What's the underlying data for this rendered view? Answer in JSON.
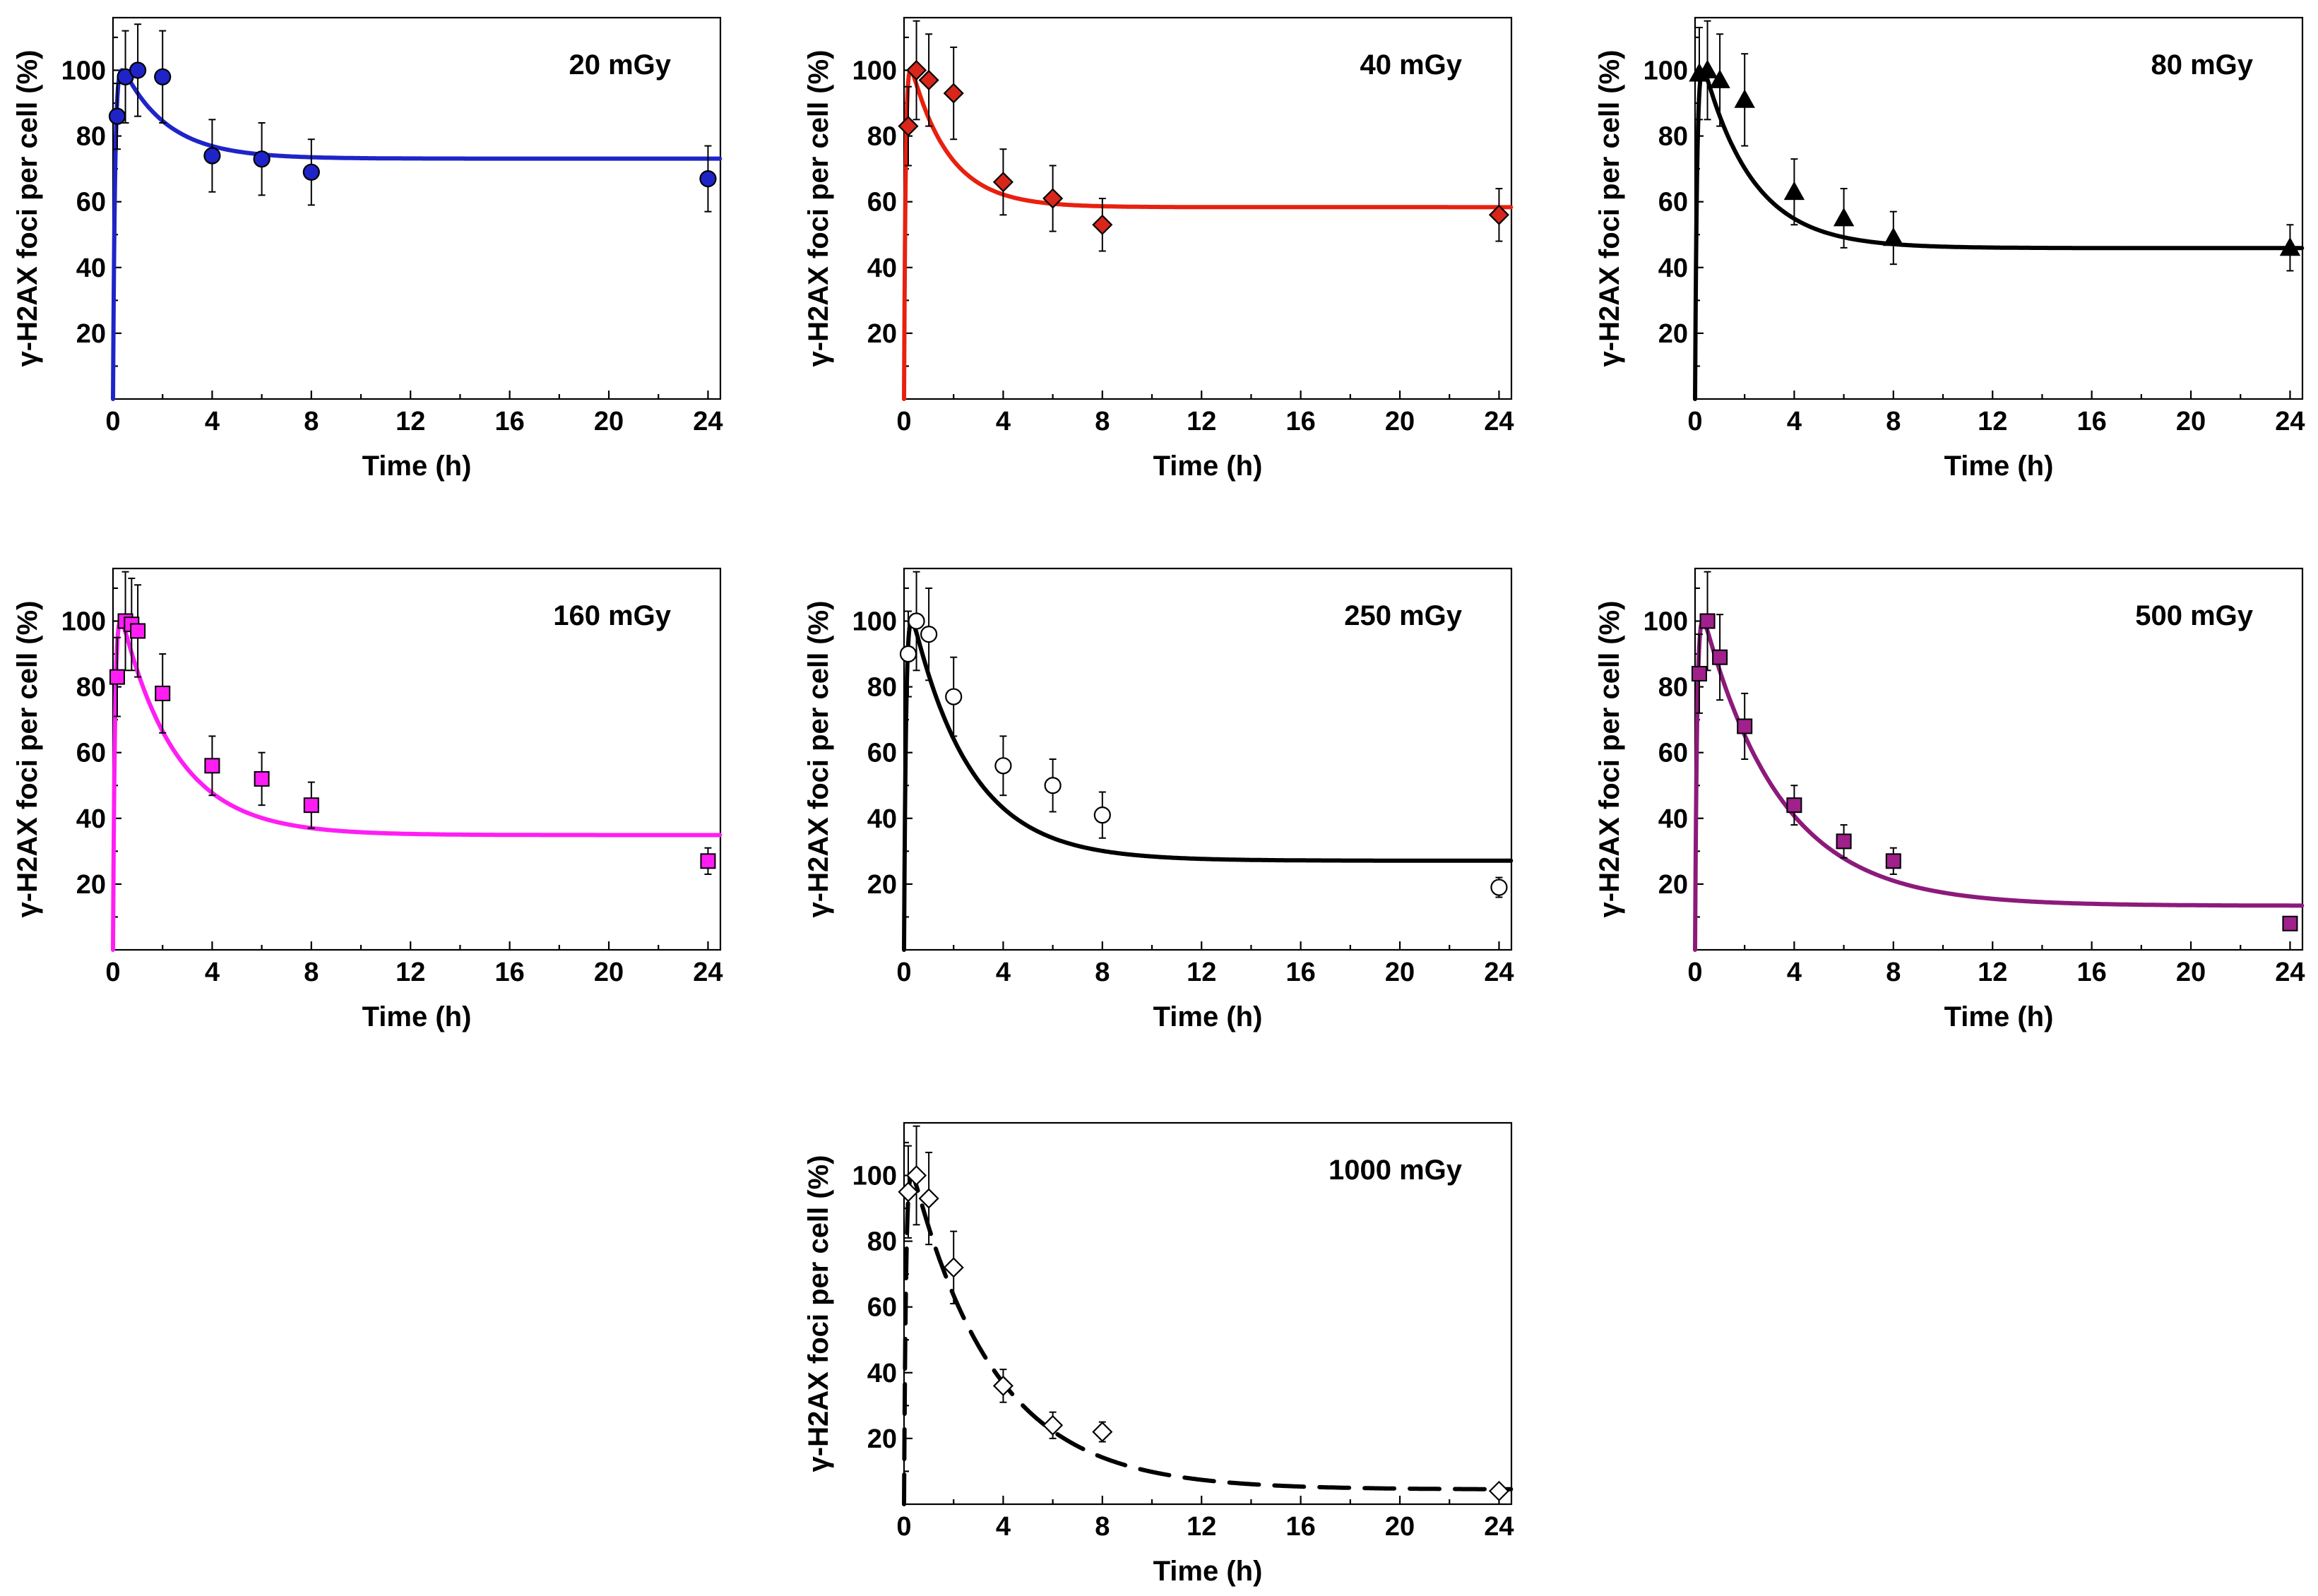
{
  "chart_data": [
    {
      "type": "scatter",
      "title": "20 mGy",
      "xlabel": "Time (h)",
      "ylabel": "γ-H2AX foci per cell (%)",
      "xlim": [
        0,
        24.5
      ],
      "ylim": [
        0,
        116
      ],
      "xticks": [
        "0",
        "4",
        "8",
        "12",
        "16",
        "20",
        "24"
      ],
      "yticks": [
        "20",
        "40",
        "60",
        "80",
        "100"
      ],
      "marker": "circle",
      "color": "#1f24c8",
      "fill": "#1f24c8",
      "line_style": "solid",
      "fit_plateau": 68,
      "fit_rise": 4,
      "fit_decay": 0.55,
      "x": [
        0.17,
        0.5,
        1,
        2,
        4,
        6,
        8,
        24
      ],
      "y": [
        86,
        98,
        100,
        98,
        74,
        73,
        69,
        67
      ],
      "err": [
        10,
        14,
        14,
        14,
        11,
        11,
        10,
        10
      ]
    },
    {
      "type": "scatter",
      "title": "40 mGy",
      "xlabel": "Time (h)",
      "ylabel": "γ-H2AX foci per cell (%)",
      "xlim": [
        0,
        24.5
      ],
      "ylim": [
        0,
        116
      ],
      "xticks": [
        "0",
        "4",
        "8",
        "12",
        "16",
        "20",
        "24"
      ],
      "yticks": [
        "20",
        "40",
        "60",
        "80",
        "100"
      ],
      "marker": "diamond",
      "color": "#e82010",
      "fill": "#d8261a",
      "line_style": "solid",
      "fit_plateau": 53,
      "fit_rise": 5,
      "fit_decay": 0.65,
      "x": [
        0.17,
        0.5,
        1,
        2,
        4,
        6,
        8,
        24
      ],
      "y": [
        83,
        100,
        97,
        93,
        66,
        61,
        53,
        56
      ],
      "err": [
        12,
        15,
        14,
        14,
        10,
        10,
        8,
        8
      ]
    },
    {
      "type": "scatter",
      "title": "80 mGy",
      "xlabel": "Time (h)",
      "ylabel": "γ-H2AX foci per cell (%)",
      "xlim": [
        0,
        24.5
      ],
      "ylim": [
        0,
        116
      ],
      "xticks": [
        "0",
        "4",
        "8",
        "12",
        "16",
        "20",
        "24"
      ],
      "yticks": [
        "20",
        "40",
        "60",
        "80",
        "100"
      ],
      "marker": "triangle",
      "color": "#000000",
      "fill": "#000000",
      "line_style": "solid",
      "fit_plateau": 41,
      "fit_rise": 4,
      "fit_decay": 0.5,
      "x": [
        0.17,
        0.5,
        1,
        2,
        4,
        6,
        8,
        24
      ],
      "y": [
        99,
        100,
        97,
        91,
        63,
        55,
        49,
        46
      ],
      "err": [
        14,
        15,
        14,
        14,
        10,
        9,
        8,
        7
      ]
    },
    {
      "type": "scatter",
      "title": "160 mGy",
      "xlabel": "Time (h)",
      "ylabel": "γ-H2AX foci per cell (%)",
      "xlim": [
        0,
        24.5
      ],
      "ylim": [
        0,
        116
      ],
      "xticks": [
        "0",
        "4",
        "8",
        "12",
        "16",
        "20",
        "24"
      ],
      "yticks": [
        "20",
        "40",
        "60",
        "80",
        "100"
      ],
      "marker": "square",
      "color": "#ff1df4",
      "fill": "#ff1df4",
      "line_style": "solid",
      "fit_plateau": 31,
      "fit_rise": 4,
      "fit_decay": 0.45,
      "x": [
        0.17,
        0.5,
        0.75,
        1,
        2,
        4,
        6,
        8,
        24
      ],
      "y": [
        83,
        100,
        99,
        97,
        78,
        56,
        52,
        44,
        27
      ],
      "err": [
        12,
        15,
        14,
        14,
        12,
        9,
        8,
        7,
        4
      ]
    },
    {
      "type": "scatter",
      "title": "250 mGy",
      "xlabel": "Time (h)",
      "ylabel": "γ-H2AX foci per cell (%)",
      "xlim": [
        0,
        24.5
      ],
      "ylim": [
        0,
        116
      ],
      "xticks": [
        "0",
        "4",
        "8",
        "12",
        "16",
        "20",
        "24"
      ],
      "yticks": [
        "20",
        "40",
        "60",
        "80",
        "100"
      ],
      "marker": "circle",
      "color": "#000000",
      "fill": "#ffffff",
      "line_style": "solid",
      "fit_plateau": 24,
      "fit_rise": 4,
      "fit_decay": 0.42,
      "x": [
        0.17,
        0.5,
        1,
        2,
        4,
        6,
        8,
        24
      ],
      "y": [
        90,
        100,
        96,
        77,
        56,
        50,
        41,
        19
      ],
      "err": [
        13,
        15,
        14,
        12,
        9,
        8,
        7,
        3
      ]
    },
    {
      "type": "scatter",
      "title": "500 mGy",
      "xlabel": "Time (h)",
      "ylabel": "γ-H2AX foci per cell (%)",
      "xlim": [
        0,
        24.5
      ],
      "ylim": [
        0,
        116
      ],
      "xticks": [
        "0",
        "4",
        "8",
        "12",
        "16",
        "20",
        "24"
      ],
      "yticks": [
        "20",
        "40",
        "60",
        "80",
        "100"
      ],
      "marker": "square",
      "color": "#8c1a7a",
      "fill": "#a0208c",
      "line_style": "solid",
      "fit_plateau": 12,
      "fit_rise": 4,
      "fit_decay": 0.32,
      "x": [
        0.17,
        0.5,
        1,
        2,
        4,
        6,
        8,
        24
      ],
      "y": [
        84,
        100,
        89,
        68,
        44,
        33,
        27,
        8
      ],
      "err": [
        12,
        15,
        13,
        10,
        6,
        5,
        4,
        1
      ]
    },
    {
      "type": "scatter",
      "title": "1000 mGy",
      "xlabel": "Time (h)",
      "ylabel": "γ-H2AX foci per cell (%)",
      "xlim": [
        0,
        24.5
      ],
      "ylim": [
        0,
        116
      ],
      "xticks": [
        "0",
        "4",
        "8",
        "12",
        "16",
        "20",
        "24"
      ],
      "yticks": [
        "20",
        "40",
        "60",
        "80",
        "100"
      ],
      "marker": "diamond",
      "color": "#000000",
      "fill": "#ffffff",
      "line_style": "dashed",
      "fit_plateau": 4,
      "fit_rise": 4,
      "fit_decay": 0.3,
      "x": [
        0.17,
        0.5,
        1,
        2,
        4,
        6,
        8,
        24
      ],
      "y": [
        95,
        100,
        93,
        72,
        36,
        24,
        22,
        4
      ],
      "err": [
        14,
        15,
        14,
        11,
        5,
        4,
        3,
        1
      ]
    }
  ]
}
